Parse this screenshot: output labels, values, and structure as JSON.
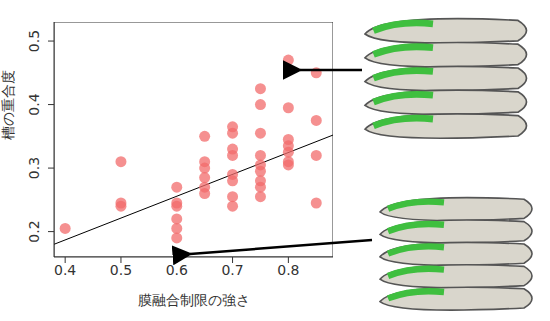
{
  "chart_data": {
    "type": "scatter",
    "x_label": "膜融合制限の強さ",
    "y_label": "槽の重合度",
    "x": [
      0.4,
      0.5,
      0.5,
      0.5,
      0.6,
      0.6,
      0.6,
      0.6,
      0.6,
      0.6,
      0.65,
      0.65,
      0.65,
      0.65,
      0.65,
      0.65,
      0.7,
      0.7,
      0.7,
      0.7,
      0.7,
      0.7,
      0.7,
      0.7,
      0.75,
      0.75,
      0.75,
      0.75,
      0.75,
      0.75,
      0.75,
      0.75,
      0.75,
      0.8,
      0.8,
      0.8,
      0.8,
      0.8,
      0.8,
      0.8,
      0.85,
      0.85,
      0.85,
      0.85
    ],
    "values": [
      0.205,
      0.31,
      0.245,
      0.24,
      0.27,
      0.245,
      0.24,
      0.22,
      0.205,
      0.19,
      0.35,
      0.31,
      0.3,
      0.285,
      0.27,
      0.26,
      0.365,
      0.355,
      0.33,
      0.32,
      0.29,
      0.28,
      0.255,
      0.24,
      0.425,
      0.4,
      0.355,
      0.32,
      0.305,
      0.295,
      0.28,
      0.27,
      0.255,
      0.47,
      0.395,
      0.345,
      0.335,
      0.325,
      0.31,
      0.305,
      0.45,
      0.375,
      0.32,
      0.245
    ],
    "color": "#f26b6b",
    "marker": "circle",
    "xlim": [
      0.38,
      0.88
    ],
    "ylim": [
      0.16,
      0.53
    ],
    "xticks": [
      0.4,
      0.5,
      0.6,
      0.7,
      0.8
    ],
    "yticks": [
      0.2,
      0.3,
      0.4,
      0.5
    ],
    "fit_line": {
      "x": [
        0.38,
        0.88
      ],
      "y": [
        0.18,
        0.352
      ]
    }
  }
}
